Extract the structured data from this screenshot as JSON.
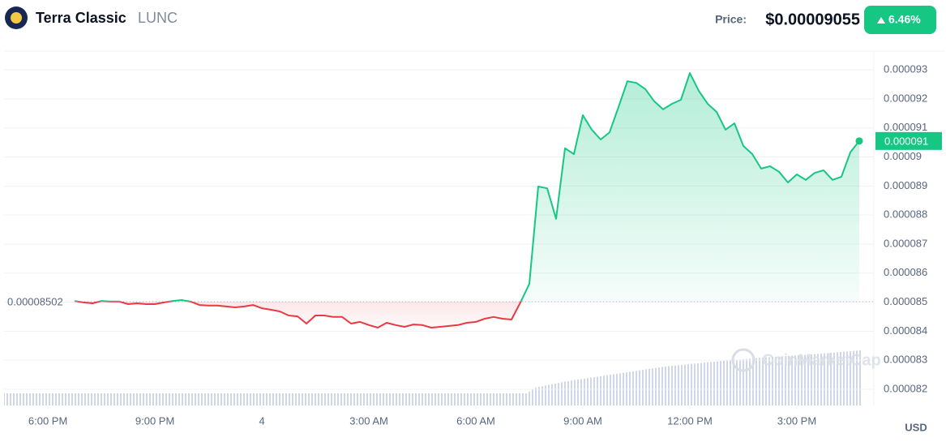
{
  "header": {
    "name": "Terra Classic",
    "symbol": "LUNC",
    "price_caption": "Price:",
    "price": "$0.00009055",
    "change": "6.46%"
  },
  "chart_data": {
    "type": "line",
    "series": [
      {
        "color_up": "#16c784",
        "color_down": "#ea3943",
        "x": [
          18.75,
          19,
          19.25,
          19.5,
          19.75,
          20,
          20.25,
          20.5,
          20.75,
          21,
          21.25,
          21.5,
          21.75,
          22,
          22.25,
          22.5,
          22.75,
          23,
          23.25,
          23.5,
          23.75,
          24,
          24.25,
          24.5,
          24.75,
          25,
          25.25,
          25.5,
          25.75,
          26,
          26.25,
          26.5,
          26.75,
          27,
          27.25,
          27.5,
          27.75,
          28,
          28.25,
          28.5,
          28.75,
          29,
          29.25,
          29.5,
          29.75,
          30,
          30.25,
          30.5,
          30.75,
          31,
          31.25,
          31.5,
          31.75,
          32,
          32.25,
          32.5,
          32.75,
          33,
          33.25,
          33.5,
          33.75,
          34,
          34.25,
          34.5,
          34.75,
          35,
          35.25,
          35.5,
          35.75,
          36,
          36.25,
          36.5,
          36.75,
          37,
          37.25,
          37.5,
          37.75,
          38,
          38.25,
          38.5,
          38.75,
          39,
          39.25,
          39.5,
          39.75,
          40,
          40.25,
          40.5,
          40.75
        ],
        "values": [
          8.504e-05,
          8.499e-05,
          8.496e-05,
          8.504e-05,
          8.502e-05,
          8.502e-05,
          8.493e-05,
          8.496e-05,
          8.493e-05,
          8.493e-05,
          8.499e-05,
          8.504e-05,
          8.507e-05,
          8.502e-05,
          8.49e-05,
          8.488e-05,
          8.488e-05,
          8.485e-05,
          8.482e-05,
          8.485e-05,
          8.49e-05,
          8.479e-05,
          8.474e-05,
          8.468e-05,
          8.454e-05,
          8.451e-05,
          8.426e-05,
          8.454e-05,
          8.454e-05,
          8.449e-05,
          8.449e-05,
          8.426e-05,
          8.432e-05,
          8.421e-05,
          8.412e-05,
          8.429e-05,
          8.421e-05,
          8.415e-05,
          8.423e-05,
          8.421e-05,
          8.412e-05,
          8.415e-05,
          8.418e-05,
          8.421e-05,
          8.429e-05,
          8.432e-05,
          8.443e-05,
          8.449e-05,
          8.443e-05,
          8.44e-05,
          8.499e-05,
          8.563e-05,
          8.898e-05,
          8.892e-05,
          8.787e-05,
          9.03e-05,
          9.01e-05,
          9.144e-05,
          9.094e-05,
          9.06e-05,
          9.085e-05,
          9.172e-05,
          9.261e-05,
          9.255e-05,
          9.234e-05,
          9.192e-05,
          9.164e-05,
          9.183e-05,
          9.197e-05,
          9.289e-05,
          9.228e-05,
          9.183e-05,
          9.155e-05,
          9.094e-05,
          9.116e-05,
          9.038e-05,
          9.01e-05,
          8.96e-05,
          8.968e-05,
          8.949e-05,
          8.912e-05,
          8.94e-05,
          8.921e-05,
          8.945e-05,
          8.954e-05,
          8.921e-05,
          8.932e-05,
          9.016e-05,
          9.055e-05
        ]
      }
    ],
    "baseline": 8.502e-05,
    "current_price": {
      "value": 9.055e-05,
      "label": "0.000091"
    },
    "xlim": [
      16.77,
      41.16
    ],
    "xticks": [
      {
        "value": 18,
        "label": "6:00 PM"
      },
      {
        "value": 21,
        "label": "9:00 PM"
      },
      {
        "value": 24,
        "label": "4"
      },
      {
        "value": 27,
        "label": "3:00 AM"
      },
      {
        "value": 30,
        "label": "6:00 AM"
      },
      {
        "value": 33,
        "label": "9:00 AM"
      },
      {
        "value": 36,
        "label": "12:00 PM"
      },
      {
        "value": 39,
        "label": "3:00 PM"
      }
    ],
    "ylim": [
      8.144e-05,
      9.359e-05
    ],
    "yticks": [
      8.2e-05,
      8.3e-05,
      8.4e-05,
      8.5e-05,
      8.6e-05,
      8.7e-05,
      8.8e-05,
      8.9e-05,
      9e-05,
      9.1e-05,
      9.2e-05,
      9.3e-05
    ],
    "grid": true,
    "currency": "USD",
    "watermark": "CoinMarketCap"
  }
}
